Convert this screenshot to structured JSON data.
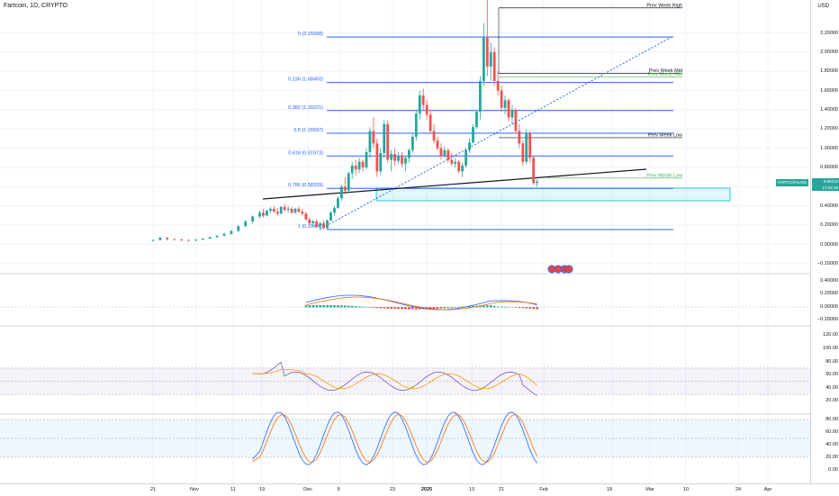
{
  "header": {
    "symbol_line": "Fartcoin, 1D, CRYPTO"
  },
  "price_axis": {
    "currency": "USD",
    "main_ticks": [
      "2.20000",
      "2.00000",
      "1.80000",
      "1.60000",
      "1.40000",
      "1.20000",
      "1.00000",
      "0.80000",
      "0.60000",
      "0.40000",
      "0.20000",
      "0.00000",
      "−0.20000"
    ],
    "macd_ticks": [
      "0.40000",
      "0.20000",
      "0.00000",
      "−0.20000"
    ],
    "rsi_ticks": [
      "120.00",
      "100.00",
      "80.00",
      "60.00",
      "40.00",
      "20.00"
    ],
    "stoch_ticks": [
      "80.00",
      "60.00",
      "40.00",
      "20.00",
      "0.00"
    ]
  },
  "current_price": {
    "symbol_label": "FARTCOINUSD",
    "price": "0.65213",
    "countdown": "17:42:48"
  },
  "time_axis": {
    "labels": [
      "21",
      "Nov",
      "11",
      "19",
      "Dec",
      "9",
      "23",
      "2025",
      "13",
      "21",
      "Feb",
      "18",
      "Mar",
      "10",
      "24",
      "Apr"
    ]
  },
  "fibonacci": {
    "levels": [
      {
        "label": "0 (2.15698)",
        "price": 2.15698
      },
      {
        "label": "0.236 (1.68450)",
        "price": 1.6845
      },
      {
        "label": "0.382 (1.39221)",
        "price": 1.39221
      },
      {
        "label": "0.5 (1.15597)",
        "price": 1.15597
      },
      {
        "label": "0.618 (0.91973)",
        "price": 0.91973
      },
      {
        "label": "0.786 (0.58339)",
        "price": 0.58339
      },
      {
        "label": "1 (0.15496)",
        "price": 0.15496
      }
    ]
  },
  "key_levels": [
    {
      "label": "Prev Week High",
      "price": 2.46,
      "color": "#131722"
    },
    {
      "label": "Prev Week Mid",
      "price": 1.78,
      "color": "#131722"
    },
    {
      "label": "Prev Month Mid",
      "price": 1.74,
      "color": "#4caf50"
    },
    {
      "label": "Prev Week Low",
      "price": 1.11,
      "color": "#131722"
    },
    {
      "label": "Prev Month Low",
      "price": 0.69,
      "color": "#4caf50"
    }
  ],
  "colors": {
    "up": "#26a69a",
    "down": "#ef5350",
    "fib": "#2962ff",
    "trend_dotted": "#2962ff",
    "rsi": "#7e57c2",
    "rsi_ma": "#ff9800",
    "macd": "#2962ff",
    "macd_signal": "#ff6d00",
    "stoch_k": "#2962ff",
    "stoch_d": "#ff6d00",
    "zone": "#26c6da"
  },
  "chart_data": {
    "type": "candlestick",
    "series": [
      {
        "date": "Oct 19",
        "ohlc": [
          0.04,
          0.05,
          0.03,
          0.045
        ]
      },
      {
        "date": "Oct 21",
        "ohlc": [
          0.045,
          0.08,
          0.04,
          0.07
        ]
      },
      {
        "date": "Oct 23",
        "ohlc": [
          0.07,
          0.075,
          0.04,
          0.055
        ]
      },
      {
        "date": "Oct 25",
        "ohlc": [
          0.055,
          0.06,
          0.04,
          0.05
        ]
      },
      {
        "date": "Oct 27",
        "ohlc": [
          0.05,
          0.06,
          0.035,
          0.045
        ]
      },
      {
        "date": "Oct 29",
        "ohlc": [
          0.045,
          0.055,
          0.03,
          0.04
        ]
      },
      {
        "date": "Oct 31",
        "ohlc": [
          0.04,
          0.055,
          0.035,
          0.05
        ]
      },
      {
        "date": "Nov 2",
        "ohlc": [
          0.05,
          0.065,
          0.045,
          0.06
        ]
      },
      {
        "date": "Nov 4",
        "ohlc": [
          0.06,
          0.08,
          0.055,
          0.075
        ]
      },
      {
        "date": "Nov 6",
        "ohlc": [
          0.075,
          0.095,
          0.07,
          0.09
        ]
      },
      {
        "date": "Nov 8",
        "ohlc": [
          0.09,
          0.12,
          0.085,
          0.11
        ]
      },
      {
        "date": "Nov 10",
        "ohlc": [
          0.11,
          0.15,
          0.1,
          0.14
        ]
      },
      {
        "date": "Nov 12",
        "ohlc": [
          0.14,
          0.2,
          0.13,
          0.19
        ]
      },
      {
        "date": "Nov 14",
        "ohlc": [
          0.19,
          0.25,
          0.18,
          0.24
        ]
      },
      {
        "date": "Nov 16",
        "ohlc": [
          0.24,
          0.3,
          0.22,
          0.29
        ]
      },
      {
        "date": "Nov 17",
        "ohlc": [
          0.29,
          0.35,
          0.27,
          0.33
        ]
      },
      {
        "date": "Nov 18",
        "ohlc": [
          0.33,
          0.37,
          0.28,
          0.3
        ]
      },
      {
        "date": "Nov 19",
        "ohlc": [
          0.3,
          0.36,
          0.29,
          0.35
        ]
      },
      {
        "date": "Nov 20",
        "ohlc": [
          0.35,
          0.39,
          0.32,
          0.37
        ]
      },
      {
        "date": "Nov 21",
        "ohlc": [
          0.37,
          0.4,
          0.33,
          0.34
        ]
      },
      {
        "date": "Nov 22",
        "ohlc": [
          0.34,
          0.38,
          0.3,
          0.32
        ]
      },
      {
        "date": "Nov 23",
        "ohlc": [
          0.32,
          0.4,
          0.31,
          0.39
        ]
      },
      {
        "date": "Nov 24",
        "ohlc": [
          0.39,
          0.42,
          0.34,
          0.36
        ]
      },
      {
        "date": "Nov 25",
        "ohlc": [
          0.36,
          0.4,
          0.33,
          0.37
        ]
      },
      {
        "date": "Nov 26",
        "ohlc": [
          0.37,
          0.39,
          0.32,
          0.33
        ]
      },
      {
        "date": "Nov 27",
        "ohlc": [
          0.33,
          0.38,
          0.32,
          0.37
        ]
      },
      {
        "date": "Nov 28",
        "ohlc": [
          0.37,
          0.39,
          0.33,
          0.34
        ]
      },
      {
        "date": "Nov 29",
        "ohlc": [
          0.34,
          0.37,
          0.3,
          0.32
        ]
      },
      {
        "date": "Nov 30",
        "ohlc": [
          0.32,
          0.34,
          0.25,
          0.26
        ]
      },
      {
        "date": "Dec 1",
        "ohlc": [
          0.26,
          0.28,
          0.2,
          0.22
        ]
      },
      {
        "date": "Dec 2",
        "ohlc": [
          0.22,
          0.26,
          0.19,
          0.24
        ]
      },
      {
        "date": "Dec 3",
        "ohlc": [
          0.24,
          0.26,
          0.17,
          0.19
        ]
      },
      {
        "date": "Dec 4",
        "ohlc": [
          0.19,
          0.23,
          0.16,
          0.22
        ]
      },
      {
        "date": "Dec 5",
        "ohlc": [
          0.22,
          0.25,
          0.155,
          0.17
        ]
      },
      {
        "date": "Dec 6",
        "ohlc": [
          0.17,
          0.26,
          0.16,
          0.25
        ]
      },
      {
        "date": "Dec 7",
        "ohlc": [
          0.25,
          0.35,
          0.24,
          0.33
        ]
      },
      {
        "date": "Dec 8",
        "ohlc": [
          0.33,
          0.4,
          0.3,
          0.38
        ]
      },
      {
        "date": "Dec 9",
        "ohlc": [
          0.38,
          0.5,
          0.37,
          0.48
        ]
      },
      {
        "date": "Dec 10",
        "ohlc": [
          0.48,
          0.62,
          0.45,
          0.6
        ]
      },
      {
        "date": "Dec 11",
        "ohlc": [
          0.6,
          0.7,
          0.52,
          0.56
        ]
      },
      {
        "date": "Dec 12",
        "ohlc": [
          0.56,
          0.76,
          0.54,
          0.74
        ]
      },
      {
        "date": "Dec 13",
        "ohlc": [
          0.74,
          0.86,
          0.68,
          0.82
        ]
      },
      {
        "date": "Dec 14",
        "ohlc": [
          0.82,
          0.88,
          0.72,
          0.78
        ]
      },
      {
        "date": "Dec 15",
        "ohlc": [
          0.78,
          0.9,
          0.74,
          0.86
        ]
      },
      {
        "date": "Dec 16",
        "ohlc": [
          0.86,
          0.88,
          0.76,
          0.8
        ]
      },
      {
        "date": "Dec 17",
        "ohlc": [
          0.8,
          1.0,
          0.78,
          0.96
        ]
      },
      {
        "date": "Dec 18",
        "ohlc": [
          0.96,
          1.22,
          0.9,
          1.18
        ]
      },
      {
        "date": "Dec 19",
        "ohlc": [
          1.18,
          1.32,
          1.0,
          1.05
        ]
      },
      {
        "date": "Dec 20",
        "ohlc": [
          1.05,
          1.1,
          0.7,
          0.76
        ]
      },
      {
        "date": "Dec 21",
        "ohlc": [
          0.76,
          1.0,
          0.72,
          0.95
        ]
      },
      {
        "date": "Dec 22",
        "ohlc": [
          0.95,
          1.3,
          0.9,
          1.25
        ]
      },
      {
        "date": "Dec 23",
        "ohlc": [
          1.25,
          1.29,
          0.85,
          0.88
        ]
      },
      {
        "date": "Dec 24",
        "ohlc": [
          0.88,
          0.98,
          0.76,
          0.94
        ]
      },
      {
        "date": "Dec 25",
        "ohlc": [
          0.94,
          1.0,
          0.82,
          0.87
        ]
      },
      {
        "date": "Dec 26",
        "ohlc": [
          0.87,
          0.96,
          0.84,
          0.92
        ]
      },
      {
        "date": "Dec 27",
        "ohlc": [
          0.92,
          0.96,
          0.8,
          0.84
        ]
      },
      {
        "date": "Dec 28",
        "ohlc": [
          0.84,
          0.92,
          0.76,
          0.9
        ]
      },
      {
        "date": "Dec 29",
        "ohlc": [
          0.9,
          1.0,
          0.85,
          0.98
        ]
      },
      {
        "date": "Dec 30",
        "ohlc": [
          0.98,
          1.15,
          0.95,
          1.12
        ]
      },
      {
        "date": "Dec 31",
        "ohlc": [
          1.12,
          1.4,
          1.08,
          1.36
        ]
      },
      {
        "date": "Jan 1",
        "ohlc": [
          1.36,
          1.6,
          1.3,
          1.55
        ]
      },
      {
        "date": "Jan 2",
        "ohlc": [
          1.55,
          1.62,
          1.4,
          1.45
        ]
      },
      {
        "date": "Jan 3",
        "ohlc": [
          1.45,
          1.5,
          1.3,
          1.35
        ]
      },
      {
        "date": "Jan 4",
        "ohlc": [
          1.35,
          1.4,
          1.15,
          1.18
        ]
      },
      {
        "date": "Jan 5",
        "ohlc": [
          1.18,
          1.25,
          1.05,
          1.08
        ]
      },
      {
        "date": "Jan 6",
        "ohlc": [
          1.08,
          1.12,
          0.98,
          1.0
        ]
      },
      {
        "date": "Jan 7",
        "ohlc": [
          1.0,
          1.05,
          0.88,
          0.92
        ]
      },
      {
        "date": "Jan 8",
        "ohlc": [
          0.92,
          1.02,
          0.9,
          0.98
        ]
      },
      {
        "date": "Jan 9",
        "ohlc": [
          0.98,
          1.0,
          0.85,
          0.88
        ]
      },
      {
        "date": "Jan 10",
        "ohlc": [
          0.88,
          0.95,
          0.82,
          0.84
        ]
      },
      {
        "date": "Jan 11",
        "ohlc": [
          0.84,
          0.9,
          0.8,
          0.86
        ]
      },
      {
        "date": "Jan 12",
        "ohlc": [
          0.86,
          0.88,
          0.74,
          0.76
        ]
      },
      {
        "date": "Jan 13",
        "ohlc": [
          0.76,
          0.85,
          0.7,
          0.82
        ]
      },
      {
        "date": "Jan 14",
        "ohlc": [
          0.82,
          1.0,
          0.8,
          0.98
        ]
      },
      {
        "date": "Jan 15",
        "ohlc": [
          0.98,
          1.1,
          0.95,
          1.06
        ]
      },
      {
        "date": "Jan 16",
        "ohlc": [
          1.06,
          1.25,
          1.05,
          1.22
        ]
      },
      {
        "date": "Jan 17",
        "ohlc": [
          1.22,
          1.4,
          1.2,
          1.38
        ]
      },
      {
        "date": "Jan 18",
        "ohlc": [
          1.38,
          1.75,
          1.3,
          1.7
        ]
      },
      {
        "date": "Jan 19",
        "ohlc": [
          1.7,
          2.3,
          1.65,
          2.15
        ]
      },
      {
        "date": "Jan 20",
        "ohlc": [
          2.15,
          2.6,
          1.75,
          1.85
        ]
      },
      {
        "date": "Jan 21",
        "ohlc": [
          1.85,
          2.1,
          1.7,
          2.0
        ]
      },
      {
        "date": "Jan 22",
        "ohlc": [
          2.0,
          2.05,
          1.65,
          1.7
        ]
      },
      {
        "date": "Jan 23",
        "ohlc": [
          1.7,
          1.8,
          1.55,
          1.6
        ]
      },
      {
        "date": "Jan 24",
        "ohlc": [
          1.6,
          1.65,
          1.38,
          1.42
        ]
      },
      {
        "date": "Jan 25",
        "ohlc": [
          1.42,
          1.55,
          1.35,
          1.5
        ]
      },
      {
        "date": "Jan 26",
        "ohlc": [
          1.5,
          1.52,
          1.28,
          1.32
        ]
      },
      {
        "date": "Jan 27",
        "ohlc": [
          1.32,
          1.45,
          1.25,
          1.4
        ]
      },
      {
        "date": "Jan 28",
        "ohlc": [
          1.4,
          1.42,
          1.15,
          1.18
        ]
      },
      {
        "date": "Jan 29",
        "ohlc": [
          1.18,
          1.25,
          1.0,
          1.05
        ]
      },
      {
        "date": "Jan 30",
        "ohlc": [
          1.05,
          1.08,
          0.82,
          0.86
        ]
      },
      {
        "date": "Jan 31",
        "ohlc": [
          0.86,
          1.2,
          0.84,
          1.15
        ]
      },
      {
        "date": "Feb 1",
        "ohlc": [
          1.15,
          1.18,
          0.85,
          0.9
        ]
      },
      {
        "date": "Feb 2",
        "ohlc": [
          0.9,
          0.92,
          0.62,
          0.64
        ]
      },
      {
        "date": "Feb 3",
        "ohlc": [
          0.64,
          0.68,
          0.6,
          0.652
        ]
      }
    ]
  }
}
